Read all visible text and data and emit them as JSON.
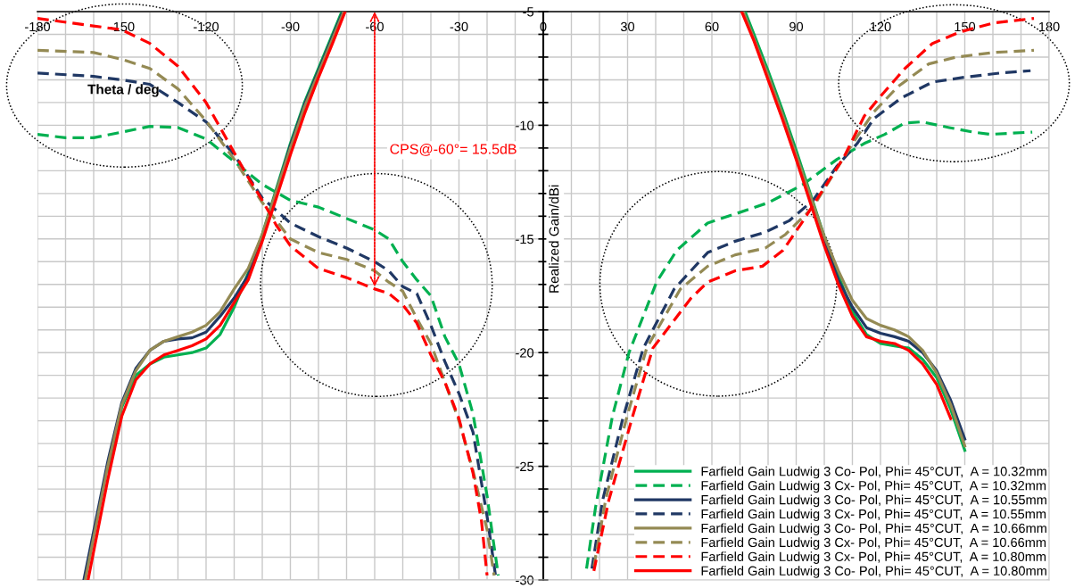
{
  "chart_data": {
    "type": "line",
    "xlabel": "Theta / deg",
    "ylabel": "Realized Gain/dBi",
    "xlim": [
      -180,
      180
    ],
    "ylim": [
      -30,
      -5
    ],
    "xticks": [
      -180,
      {
        "value": -170,
        "label": null
      },
      {
        "value": -160,
        "label": null
      },
      -150,
      {
        "value": -140,
        "label": null
      },
      {
        "value": -130,
        "label": null
      },
      -120,
      {
        "value": -110,
        "label": null
      },
      {
        "value": -100,
        "label": null
      },
      -90,
      {
        "value": -80,
        "label": null
      },
      {
        "value": -70,
        "label": null
      },
      -60,
      {
        "value": -50,
        "label": null
      },
      {
        "value": -40,
        "label": null
      },
      -30,
      {
        "value": -20,
        "label": null
      },
      {
        "value": -10,
        "label": null
      },
      0,
      {
        "value": 10,
        "label": null
      },
      {
        "value": 20,
        "label": null
      },
      30,
      {
        "value": 40,
        "label": null
      },
      {
        "value": 50,
        "label": null
      },
      60,
      {
        "value": 70,
        "label": null
      },
      {
        "value": 80,
        "label": null
      },
      90,
      {
        "value": 100,
        "label": null
      },
      {
        "value": 110,
        "label": null
      },
      120,
      {
        "value": 130,
        "label": null
      },
      {
        "value": 140,
        "label": null
      },
      150,
      {
        "value": 160,
        "label": null
      },
      {
        "value": 170,
        "label": null
      },
      180
    ],
    "yticks": [
      -5,
      {
        "value": -6,
        "label": null
      },
      {
        "value": -7,
        "label": null
      },
      {
        "value": -8,
        "label": null
      },
      {
        "value": -9,
        "label": null
      },
      -10,
      {
        "value": -11,
        "label": null
      },
      {
        "value": -12,
        "label": null
      },
      {
        "value": -13,
        "label": null
      },
      {
        "value": -14,
        "label": null
      },
      -15,
      {
        "value": -16,
        "label": null
      },
      {
        "value": -17,
        "label": null
      },
      {
        "value": -18,
        "label": null
      },
      {
        "value": -19,
        "label": null
      },
      -20,
      {
        "value": -21,
        "label": null
      },
      {
        "value": -22,
        "label": null
      },
      {
        "value": -23,
        "label": null
      },
      {
        "value": -24,
        "label": null
      },
      -25,
      {
        "value": -26,
        "label": null
      },
      {
        "value": -27,
        "label": null
      },
      {
        "value": -28,
        "label": null
      },
      {
        "value": -29,
        "label": null
      },
      -30
    ],
    "grid": true,
    "legend": "bottom right",
    "marker": "none",
    "annotations": [
      "CPS@-60°= 15.5dB"
    ],
    "series": [
      {
        "name": "Farfield Gain Ludwig 3 Co- Pol, Phi= 45°CUT,  A = 10.32mm",
        "color": "#00b050",
        "line_style": "solid",
        "x": [
          -155,
          -150,
          -145,
          -140,
          -135,
          -130,
          -125,
          -120,
          -115,
          -110,
          -105,
          -100,
          -95,
          -90,
          -85,
          -80,
          -75,
          -71.7,
          0,
          71.8,
          75,
          80,
          85,
          90,
          95,
          100,
          105,
          110,
          115,
          120,
          125,
          130,
          135,
          140,
          145,
          150
        ],
        "values": [
          -25.2,
          -22.4,
          -21,
          -20.5,
          -20.2,
          -20.1,
          -20.0,
          -19.8,
          -19.2,
          -18,
          -16.5,
          -14.8,
          -12.8,
          -10.8,
          -9.0,
          -7.5,
          -6.0,
          -5,
          null,
          -5,
          -6,
          -7.6,
          -9.3,
          -11.1,
          -13.0,
          -14.9,
          -16.6,
          -18.2,
          -19.2,
          -19.6,
          -19.7,
          -19.8,
          -20.3,
          -21.1,
          -22.5,
          -24.3
        ]
      },
      {
        "name": "Farfield Gain Ludwig 3 Cx- Pol, Phi= 45°CUT,  A = 10.32mm",
        "color": "#00b050",
        "line_style": "dashed",
        "x": [
          -180,
          -170,
          -160,
          -150,
          -140,
          -130,
          -120,
          -110,
          -100,
          -90,
          -80,
          -70,
          -60,
          -55,
          -50,
          -45,
          -40,
          -35,
          -30,
          -25,
          -20,
          -18,
          -16,
          0,
          15.4,
          18.6,
          24.6,
          30.5,
          38.1,
          40.3,
          47.5,
          58.5,
          68.3,
          80.2,
          92.5,
          104.5,
          114.2,
          121.5,
          128.7,
          134.7,
          144.4,
          153,
          159,
          174
        ],
        "values": [
          -10.4,
          -10.55,
          -10.55,
          -10.3,
          -10.05,
          -10.1,
          -10.6,
          -11.6,
          -12.6,
          -13.3,
          -13.6,
          -14.1,
          -14.6,
          -15.0,
          -16.0,
          -16.8,
          -17.5,
          -19.3,
          -20.5,
          -22.7,
          -26.3,
          -28.1,
          -29.8,
          null,
          -29.5,
          -26.8,
          -22.8,
          -20.0,
          -17.6,
          -16.9,
          -15.5,
          -14.3,
          -13.9,
          -13.4,
          -12.6,
          -11.5,
          -10.8,
          -10.4,
          -9.9,
          -9.85,
          -10.1,
          -10.3,
          -10.4,
          -10.3
        ]
      },
      {
        "name": "Farfield Gain Ludwig 3 Co- Pol, Phi= 45°CUT,  A = 10.55mm",
        "color": "#203864",
        "line_style": "solid",
        "x": [
          -163.5,
          -155,
          -150,
          -145,
          -140,
          -135,
          -130,
          -125,
          -120,
          -115,
          -110,
          -105,
          -100,
          -95,
          -90,
          -85,
          -80,
          -75,
          -71.3,
          0,
          71.2,
          75,
          80,
          85,
          90,
          95,
          100,
          105,
          110,
          115,
          120,
          125,
          130,
          135,
          140,
          145,
          150
        ],
        "values": [
          -30,
          -24.8,
          -22.2,
          -20.7,
          -19.9,
          -19.5,
          -19.4,
          -19.35,
          -19.1,
          -18.4,
          -17.6,
          -16.6,
          -14.9,
          -12.9,
          -10.9,
          -9.1,
          -7.6,
          -6.1,
          -5,
          null,
          -5,
          -6.2,
          -7.8,
          -9.5,
          -11.3,
          -13.2,
          -15.1,
          -16.8,
          -18.0,
          -18.9,
          -19.15,
          -19.3,
          -19.5,
          -20.0,
          -20.8,
          -22.1,
          -23.8
        ]
      },
      {
        "name": "Farfield Gain Ludwig 3 Cx- Pol, Phi= 45°CUT,  A = 10.55mm",
        "color": "#203864",
        "line_style": "dashed",
        "x": [
          -180,
          -160,
          -150,
          -140,
          -130,
          -120,
          -110,
          -100,
          -90,
          -80,
          -70,
          -60,
          -55,
          -50,
          -45,
          -40,
          -35,
          -30,
          -25,
          -20,
          -17,
          0,
          17.3,
          21.1,
          28.3,
          35.6,
          46.6,
          58.5,
          68.3,
          79,
          87.5,
          96,
          104.5,
          111.7,
          117.7,
          127.4,
          138.5,
          149.2,
          162.7,
          173.4
        ],
        "values": [
          -7.7,
          -7.85,
          -8.0,
          -8.2,
          -9.0,
          -9.85,
          -11.3,
          -13.2,
          -14.3,
          -14.9,
          -15.4,
          -16.0,
          -16.4,
          -17.1,
          -17.4,
          -18.8,
          -20.4,
          -21.8,
          -23.5,
          -27.2,
          -29.8,
          null,
          -29.5,
          -26.5,
          -22.9,
          -19.8,
          -17.2,
          -15.6,
          -15.1,
          -14.7,
          -14.2,
          -13.3,
          -11.8,
          -10.8,
          -9.7,
          -8.8,
          -8.1,
          -7.9,
          -7.7,
          -7.6
        ]
      },
      {
        "name": "Farfield Gain Ludwig 3 Co- Pol, Phi= 45°CUT,  A = 10.66mm",
        "color": "#948a54",
        "line_style": "solid",
        "x": [
          -163,
          -155,
          -150,
          -145,
          -140,
          -135,
          -130,
          -125,
          -120,
          -115,
          -110,
          -105,
          -100,
          -95,
          -90,
          -85,
          -80,
          -75,
          -71,
          0,
          71.2,
          75,
          80,
          85,
          90,
          95,
          100,
          105,
          110,
          115,
          120,
          125,
          130,
          135,
          140,
          145,
          150
        ],
        "values": [
          -30,
          -25.0,
          -22.3,
          -20.8,
          -19.9,
          -19.5,
          -19.3,
          -19.1,
          -18.8,
          -18.2,
          -17.2,
          -16.3,
          -14.8,
          -12.9,
          -11.0,
          -9.2,
          -7.7,
          -6.2,
          -5,
          null,
          -5,
          -6.2,
          -7.8,
          -9.5,
          -11.3,
          -13.1,
          -14.9,
          -16.4,
          -17.7,
          -18.5,
          -18.8,
          -19.0,
          -19.3,
          -19.9,
          -20.9,
          -22.3,
          -24.1
        ]
      },
      {
        "name": "Farfield Gain Ludwig 3 Cx- Pol, Phi= 45°CUT,  A = 10.66mm",
        "color": "#948a54",
        "line_style": "dashed",
        "x": [
          -180,
          -160,
          -150,
          -140,
          -130,
          -120,
          -110,
          -100,
          -90,
          -80,
          -70,
          -60,
          -55,
          -50,
          -45,
          -40,
          -35,
          -30,
          -25,
          -20,
          -17.5,
          0,
          18,
          22.3,
          29.6,
          36.8,
          48.8,
          58.5,
          68.3,
          79,
          86.2,
          96,
          104.5,
          111.7,
          117.7,
          126.2,
          137.2,
          147,
          160.2,
          174.6
        ],
        "values": [
          -6.7,
          -6.8,
          -7.1,
          -7.5,
          -8.4,
          -9.8,
          -11.5,
          -13.4,
          -15.0,
          -15.6,
          -15.9,
          -16.4,
          -16.9,
          -17.3,
          -18.5,
          -19.6,
          -21.3,
          -23.0,
          -25.2,
          -27.8,
          -29.8,
          null,
          -29.4,
          -26.4,
          -22.9,
          -19.8,
          -17.2,
          -16.2,
          -15.7,
          -15.4,
          -14.8,
          -13.6,
          -11.9,
          -10.5,
          -9.4,
          -8.3,
          -7.3,
          -7.0,
          -6.8,
          -6.7
        ]
      },
      {
        "name": "Farfield Gain Ludwig 3 Cx- Pol, Phi= 45°CUT,  A = 10.80mm",
        "color": "#ff0000",
        "line_style": "dashed",
        "x": [
          -180,
          -150,
          -140,
          -130,
          -120,
          -115,
          -110,
          -105,
          -100,
          -95,
          -90,
          -80,
          -70,
          -60,
          -55,
          -50,
          -45,
          -40,
          -35,
          -30,
          -25,
          -22,
          -20,
          0,
          18,
          23.3,
          31.8,
          39,
          52.6,
          58.5,
          68.3,
          78,
          85.3,
          92.5,
          99.7,
          107,
          114.2,
          120.2,
          128.7,
          138.5,
          148.2,
          160.2,
          174.6
        ],
        "values": [
          -5.3,
          -5.8,
          -6.4,
          -7.4,
          -9.0,
          -10.1,
          -11.2,
          -12.3,
          -13.3,
          -14.4,
          -15.3,
          -16.3,
          -16.7,
          -17.2,
          -17.4,
          -17.9,
          -18.7,
          -20.1,
          -21.3,
          -22.9,
          -25.3,
          -27.4,
          -29.8,
          null,
          -29.6,
          -26.5,
          -22.8,
          -19.8,
          -17.6,
          -16.9,
          -16.4,
          -16.2,
          -15.5,
          -14.2,
          -12.8,
          -11.4,
          -9.6,
          -8.7,
          -7.5,
          -6.4,
          -5.9,
          -5.5,
          -5.3
        ]
      },
      {
        "name": "Farfield Gain Ludwig 3 Co- Pol, Phi= 45°CUT,  A = 10.80mm",
        "color": "#ff0000",
        "line_style": "solid",
        "x": [
          -162,
          -155,
          -150,
          -145,
          -140,
          -135,
          -130,
          -125,
          -120,
          -115,
          -110,
          -105,
          -100,
          -95,
          -90,
          -85,
          -80,
          -75,
          -70.5,
          0,
          70.6,
          75,
          80,
          85,
          90,
          95,
          100,
          105,
          110,
          115,
          120,
          125,
          130,
          135,
          140,
          145
        ],
        "values": [
          -30,
          -25.6,
          -22.8,
          -21.2,
          -20.5,
          -20.1,
          -19.9,
          -19.7,
          -19.4,
          -18.8,
          -17.8,
          -16.8,
          -15.1,
          -13.2,
          -11.3,
          -9.5,
          -7.9,
          -6.4,
          -5,
          null,
          -5,
          -6.3,
          -8.0,
          -9.7,
          -11.5,
          -13.4,
          -15.3,
          -17.0,
          -18.4,
          -19.3,
          -19.5,
          -19.6,
          -19.9,
          -20.5,
          -21.4,
          -22.9
        ]
      }
    ]
  }
}
